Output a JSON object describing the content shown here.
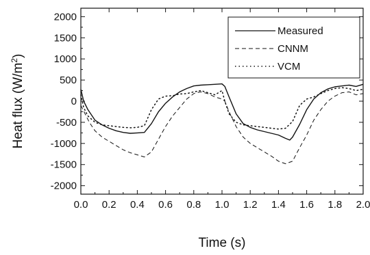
{
  "chart_data": {
    "type": "line",
    "xlabel": "Time (s)",
    "ylabel_main": "Heat flux (W/m",
    "ylabel_sup": "2",
    "ylabel_close": ")",
    "xlim": [
      0.0,
      2.0
    ],
    "ylim": [
      -2200,
      2200
    ],
    "x_ticks": [
      0.0,
      0.2,
      0.4,
      0.6,
      0.8,
      1.0,
      1.2,
      1.4,
      1.6,
      1.8,
      2.0
    ],
    "x_tick_labels": [
      "0.0",
      "0.2",
      "0.4",
      "0.6",
      "0.8",
      "1.0",
      "1.2",
      "1.4",
      "1.6",
      "1.8",
      "2.0"
    ],
    "y_ticks": [
      -2000,
      -1500,
      -1000,
      -500,
      0,
      500,
      1000,
      1500,
      2000
    ],
    "y_tick_labels": [
      "-2000",
      "-1500",
      "-1000",
      "-500",
      "0",
      "500",
      "1000",
      "1500",
      "2000"
    ],
    "legend_position": "top-right",
    "series": [
      {
        "name": "Measured",
        "style": "solid",
        "x": [
          0.0,
          0.02,
          0.05,
          0.08,
          0.1,
          0.15,
          0.2,
          0.25,
          0.3,
          0.35,
          0.4,
          0.45,
          0.5,
          0.55,
          0.6,
          0.65,
          0.7,
          0.75,
          0.8,
          0.85,
          0.9,
          0.95,
          1.0,
          1.02,
          1.05,
          1.1,
          1.15,
          1.2,
          1.25,
          1.3,
          1.35,
          1.4,
          1.45,
          1.48,
          1.5,
          1.55,
          1.6,
          1.65,
          1.7,
          1.75,
          1.8,
          1.85,
          1.9,
          1.95,
          2.0
        ],
        "y": [
          280,
          0,
          -200,
          -350,
          -450,
          -560,
          -640,
          -700,
          -740,
          -760,
          -750,
          -740,
          -530,
          -250,
          -50,
          100,
          220,
          300,
          360,
          380,
          390,
          400,
          410,
          350,
          100,
          -300,
          -530,
          -620,
          -680,
          -720,
          -760,
          -800,
          -880,
          -920,
          -850,
          -550,
          -200,
          50,
          200,
          290,
          340,
          360,
          380,
          350,
          400
        ]
      },
      {
        "name": "CNNM",
        "style": "dashed",
        "x": [
          0.0,
          0.03,
          0.06,
          0.1,
          0.15,
          0.2,
          0.25,
          0.3,
          0.35,
          0.4,
          0.45,
          0.5,
          0.55,
          0.6,
          0.65,
          0.7,
          0.75,
          0.8,
          0.82,
          0.85,
          0.9,
          0.95,
          1.0,
          1.02,
          1.05,
          1.1,
          1.15,
          1.2,
          1.25,
          1.3,
          1.35,
          1.4,
          1.45,
          1.5,
          1.55,
          1.6,
          1.65,
          1.7,
          1.75,
          1.8,
          1.85,
          1.9,
          1.95,
          2.0
        ],
        "y": [
          -100,
          -300,
          -500,
          -700,
          -850,
          -950,
          -1050,
          -1150,
          -1220,
          -1270,
          -1320,
          -1200,
          -900,
          -600,
          -350,
          -150,
          50,
          180,
          200,
          220,
          180,
          100,
          50,
          0,
          -250,
          -600,
          -850,
          -1000,
          -1100,
          -1200,
          -1300,
          -1420,
          -1480,
          -1420,
          -1100,
          -800,
          -450,
          -200,
          0,
          120,
          200,
          220,
          150,
          180
        ]
      },
      {
        "name": "VCM",
        "style": "dotted",
        "x": [
          0.0,
          0.02,
          0.05,
          0.1,
          0.15,
          0.2,
          0.25,
          0.3,
          0.35,
          0.4,
          0.45,
          0.5,
          0.55,
          0.6,
          0.65,
          0.7,
          0.75,
          0.8,
          0.85,
          0.9,
          0.95,
          1.0,
          1.02,
          1.05,
          1.1,
          1.15,
          1.2,
          1.25,
          1.3,
          1.35,
          1.4,
          1.45,
          1.5,
          1.55,
          1.6,
          1.65,
          1.7,
          1.75,
          1.8,
          1.85,
          1.9,
          1.95,
          2.0
        ],
        "y": [
          150,
          -150,
          -350,
          -500,
          -560,
          -580,
          -600,
          -620,
          -630,
          -620,
          -580,
          -200,
          50,
          120,
          130,
          170,
          180,
          220,
          250,
          200,
          150,
          250,
          0,
          -300,
          -500,
          -560,
          -580,
          -600,
          -620,
          -640,
          -660,
          -640,
          -480,
          -100,
          50,
          100,
          180,
          250,
          300,
          320,
          300,
          250,
          280
        ]
      }
    ]
  }
}
